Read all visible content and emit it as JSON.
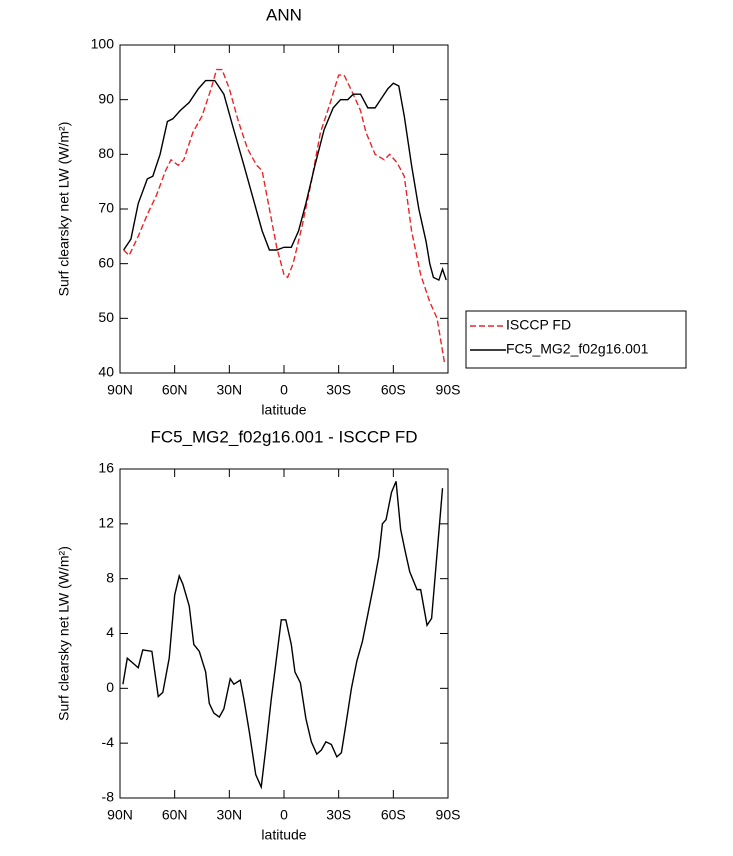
{
  "chart_data": [
    {
      "type": "line",
      "title": "ANN",
      "xlabel": "latitude",
      "ylabel": "Surf clearsky net LW (W/m²)",
      "xlim": [
        90,
        -90
      ],
      "xticks": [
        {
          "value": 90,
          "label": "90N"
        },
        {
          "value": 60,
          "label": "60N"
        },
        {
          "value": 30,
          "label": "30N"
        },
        0,
        {
          "value": -30,
          "label": "30S"
        },
        {
          "value": -60,
          "label": "60S"
        },
        {
          "value": -90,
          "label": "90S"
        }
      ],
      "ylim": [
        40,
        100
      ],
      "yticks": [
        40,
        50,
        60,
        70,
        80,
        90,
        100
      ],
      "legend": "right",
      "series": [
        {
          "name": "ISCCP FD",
          "color": "#e8262a",
          "dash": true,
          "x": [
            88,
            85,
            80,
            75,
            70,
            65,
            62,
            58,
            55,
            50,
            45,
            40,
            37,
            34,
            30,
            25,
            20,
            15,
            12,
            8,
            4,
            0,
            -2,
            -5,
            -10,
            -15,
            -20,
            -25,
            -30,
            -33,
            -38,
            -42,
            -45,
            -50,
            -55,
            -58,
            -62,
            -66,
            -70,
            -75,
            -80,
            -84,
            -88
          ],
          "values": [
            62.5,
            61.5,
            65,
            69,
            72.5,
            77,
            79,
            78,
            79,
            84,
            87,
            92,
            95.5,
            95.5,
            92,
            86,
            81,
            78,
            77,
            70,
            63,
            58,
            57.5,
            60,
            67,
            75,
            84,
            89,
            94.5,
            94.5,
            91,
            88,
            84,
            80,
            79,
            80,
            78.5,
            76,
            66,
            58,
            53,
            50,
            42
          ]
        },
        {
          "name": "FC5_MG2_f02g16.001",
          "color": "#000000",
          "dash": false,
          "x": [
            88,
            84,
            80,
            75,
            72,
            68,
            64,
            61,
            57,
            52,
            47,
            43,
            38,
            33,
            28,
            22,
            17,
            12,
            8,
            4,
            0,
            -4,
            -8,
            -12,
            -17,
            -22,
            -27,
            -31,
            -35,
            -38,
            -42,
            -46,
            -50,
            -53,
            -57,
            -60,
            -63,
            -66,
            -70,
            -74,
            -78,
            -80,
            -82,
            -85,
            -87,
            -89
          ],
          "values": [
            62.5,
            64.5,
            71,
            75.5,
            76,
            80,
            86,
            86.5,
            88,
            89.5,
            92,
            93.5,
            93.5,
            91,
            85,
            78,
            72,
            66,
            62.5,
            62.5,
            63,
            63,
            66,
            71,
            78,
            84.5,
            88.5,
            90,
            90,
            91,
            91,
            88.5,
            88.5,
            90,
            92,
            93,
            92.5,
            87,
            78,
            70,
            64,
            60,
            57.5,
            57,
            59,
            57
          ]
        }
      ]
    },
    {
      "type": "line",
      "title": "FC5_MG2_f02g16.001 - ISCCP FD",
      "xlabel": "latitude",
      "ylabel": "Surf clearsky net LW (W/m²)",
      "xlim": [
        90,
        -90
      ],
      "xticks": [
        {
          "value": 90,
          "label": "90N"
        },
        {
          "value": 60,
          "label": "60N"
        },
        {
          "value": 30,
          "label": "30N"
        },
        0,
        {
          "value": -30,
          "label": "30S"
        },
        {
          "value": -60,
          "label": "60S"
        },
        {
          "value": -90,
          "label": "90S"
        }
      ],
      "ylim": [
        -8,
        16
      ],
      "yticks": [
        -8,
        -4,
        0,
        4,
        8,
        12,
        16
      ],
      "series": [
        {
          "color": "#000000",
          "dash": false,
          "x": [
            88.4,
            86,
            80,
            77.5,
            72.5,
            69,
            66.5,
            63,
            60,
            57.5,
            55.5,
            52,
            49.5,
            46.5,
            43,
            41,
            38.5,
            35.5,
            33,
            29.5,
            27.5,
            24,
            22,
            19,
            15.5,
            12.5,
            10,
            7,
            4.5,
            1.5,
            -1,
            -4,
            -6,
            -9,
            -12,
            -15,
            -18,
            -20.5,
            -23,
            -26,
            -29,
            -31.5,
            -34,
            -37,
            -40,
            -43,
            -46,
            -49,
            -52,
            -54,
            -56,
            -59,
            -61.5,
            -64,
            -66.5,
            -69,
            -73,
            -75,
            -78.5,
            -81,
            -87
          ],
          "values": [
            0.3,
            2.2,
            1.5,
            2.8,
            2.7,
            -0.6,
            -0.3,
            2.2,
            6.8,
            8.2,
            7.6,
            6,
            3.2,
            2.7,
            1.2,
            -1.1,
            -1.8,
            -2.1,
            -1.5,
            0.7,
            0.3,
            0.6,
            -0.8,
            -3.2,
            -6.3,
            -7.2,
            -4.4,
            -0.8,
            1.8,
            5,
            5,
            3.2,
            1.2,
            0.4,
            -2.2,
            -3.9,
            -4.8,
            -4.5,
            -3.9,
            -4.1,
            -5,
            -4.7,
            -2.6,
            0,
            2,
            3.4,
            5.4,
            7.4,
            9.6,
            12,
            12.3,
            14.3,
            15.1,
            11.6,
            10,
            8.5,
            7.2,
            7.2,
            4.6,
            5.1,
            14.6
          ]
        }
      ]
    }
  ]
}
